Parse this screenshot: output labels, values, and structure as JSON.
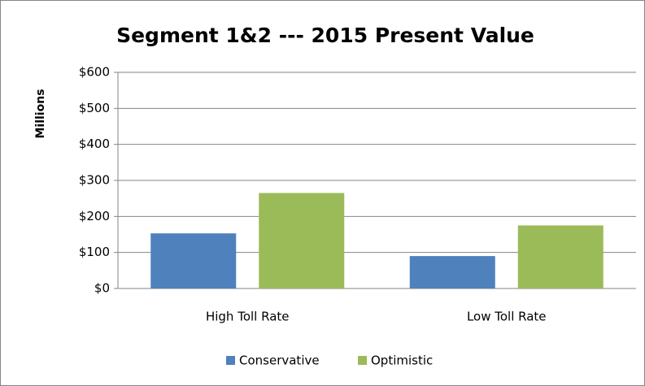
{
  "chart_data": {
    "type": "bar",
    "title": "Segment 1&2 --- 2015 Present Value",
    "y_label": "Millions",
    "categories": [
      "High Toll Rate",
      "Low Toll Rate"
    ],
    "series": [
      {
        "name": "Conservative",
        "color": "#4f81bd",
        "values": [
          153,
          90
        ]
      },
      {
        "name": "Optimistic",
        "color": "#9bbb59",
        "values": [
          265,
          175
        ]
      }
    ],
    "ylim": [
      0,
      600
    ],
    "yticks": [
      {
        "value": 0,
        "label": "$0"
      },
      {
        "value": 100,
        "label": "$100"
      },
      {
        "value": 200,
        "label": "$200"
      },
      {
        "value": 300,
        "label": "$300"
      },
      {
        "value": 400,
        "label": "$400"
      },
      {
        "value": 500,
        "label": "$500"
      },
      {
        "value": 600,
        "label": "$600"
      }
    ],
    "grid": true,
    "legend": "bottom"
  }
}
